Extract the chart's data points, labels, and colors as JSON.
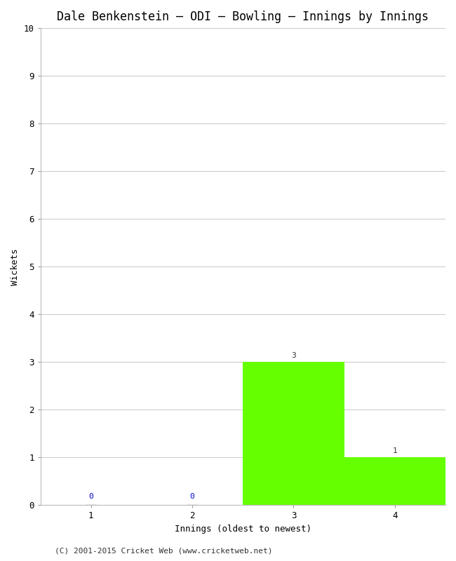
{
  "title": "Dale Benkenstein – ODI – Bowling – Innings by Innings",
  "xlabel": "Innings (oldest to newest)",
  "ylabel": "Wickets",
  "categories": [
    1,
    2,
    3,
    4
  ],
  "values": [
    0,
    0,
    3,
    1
  ],
  "bar_color_nonzero": "#66ff00",
  "label_color_zero": "#0000cc",
  "label_color_nonzero": "#333333",
  "ylim": [
    0,
    10
  ],
  "yticks": [
    0,
    1,
    2,
    3,
    4,
    5,
    6,
    7,
    8,
    9,
    10
  ],
  "xticks": [
    1,
    2,
    3,
    4
  ],
  "background_color": "#ffffff",
  "plot_bg_color": "#ffffff",
  "grid_color": "#cccccc",
  "footer": "(C) 2001-2015 Cricket Web (www.cricketweb.net)",
  "title_fontsize": 12,
  "axis_label_fontsize": 9,
  "tick_fontsize": 9,
  "annotation_fontsize": 8,
  "footer_fontsize": 8,
  "bar_width": 1.0
}
